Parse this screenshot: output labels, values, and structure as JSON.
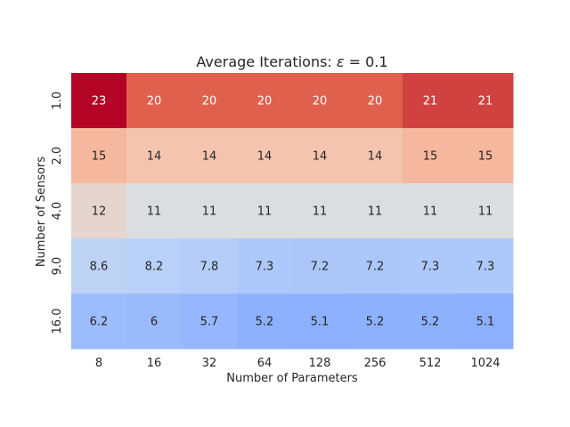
{
  "chart_data": {
    "type": "heatmap",
    "title_text": "Average Iterations: ",
    "title_symbol": "ε",
    "title_suffix": " = 0.1",
    "xlabel": "Number of Parameters",
    "ylabel": "Number of Sensors",
    "x_categories": [
      "8",
      "16",
      "32",
      "64",
      "128",
      "256",
      "512",
      "1024"
    ],
    "y_categories": [
      "1.0",
      "2.0",
      "4.0",
      "9.0",
      "16.0"
    ],
    "values": [
      [
        23,
        20,
        20,
        20,
        20,
        20,
        21,
        21
      ],
      [
        15,
        14,
        14,
        14,
        14,
        14,
        15,
        15
      ],
      [
        12,
        11,
        11,
        11,
        11,
        11,
        11,
        11
      ],
      [
        8.6,
        8.2,
        7.8,
        7.3,
        7.2,
        7.2,
        7.3,
        7.3
      ],
      [
        6.2,
        6,
        5.7,
        5.2,
        5.1,
        5.2,
        5.2,
        5.1
      ]
    ],
    "cell_labels": [
      [
        "23",
        "20",
        "20",
        "20",
        "20",
        "20",
        "21",
        "21"
      ],
      [
        "15",
        "14",
        "14",
        "14",
        "14",
        "14",
        "15",
        "15"
      ],
      [
        "12",
        "11",
        "11",
        "11",
        "11",
        "11",
        "11",
        "11"
      ],
      [
        "8.6",
        "8.2",
        "7.8",
        "7.3",
        "7.2",
        "7.2",
        "7.3",
        "7.3"
      ],
      [
        "6.2",
        "6",
        "5.7",
        "5.2",
        "5.1",
        "5.2",
        "5.2",
        "5.1"
      ]
    ],
    "colormap": "coolwarm",
    "colormap_stops": [
      "#7396f5",
      "#dddddd",
      "#b40426"
    ],
    "color_range": [
      5.1,
      23
    ],
    "colorbar": false,
    "grid": false
  }
}
